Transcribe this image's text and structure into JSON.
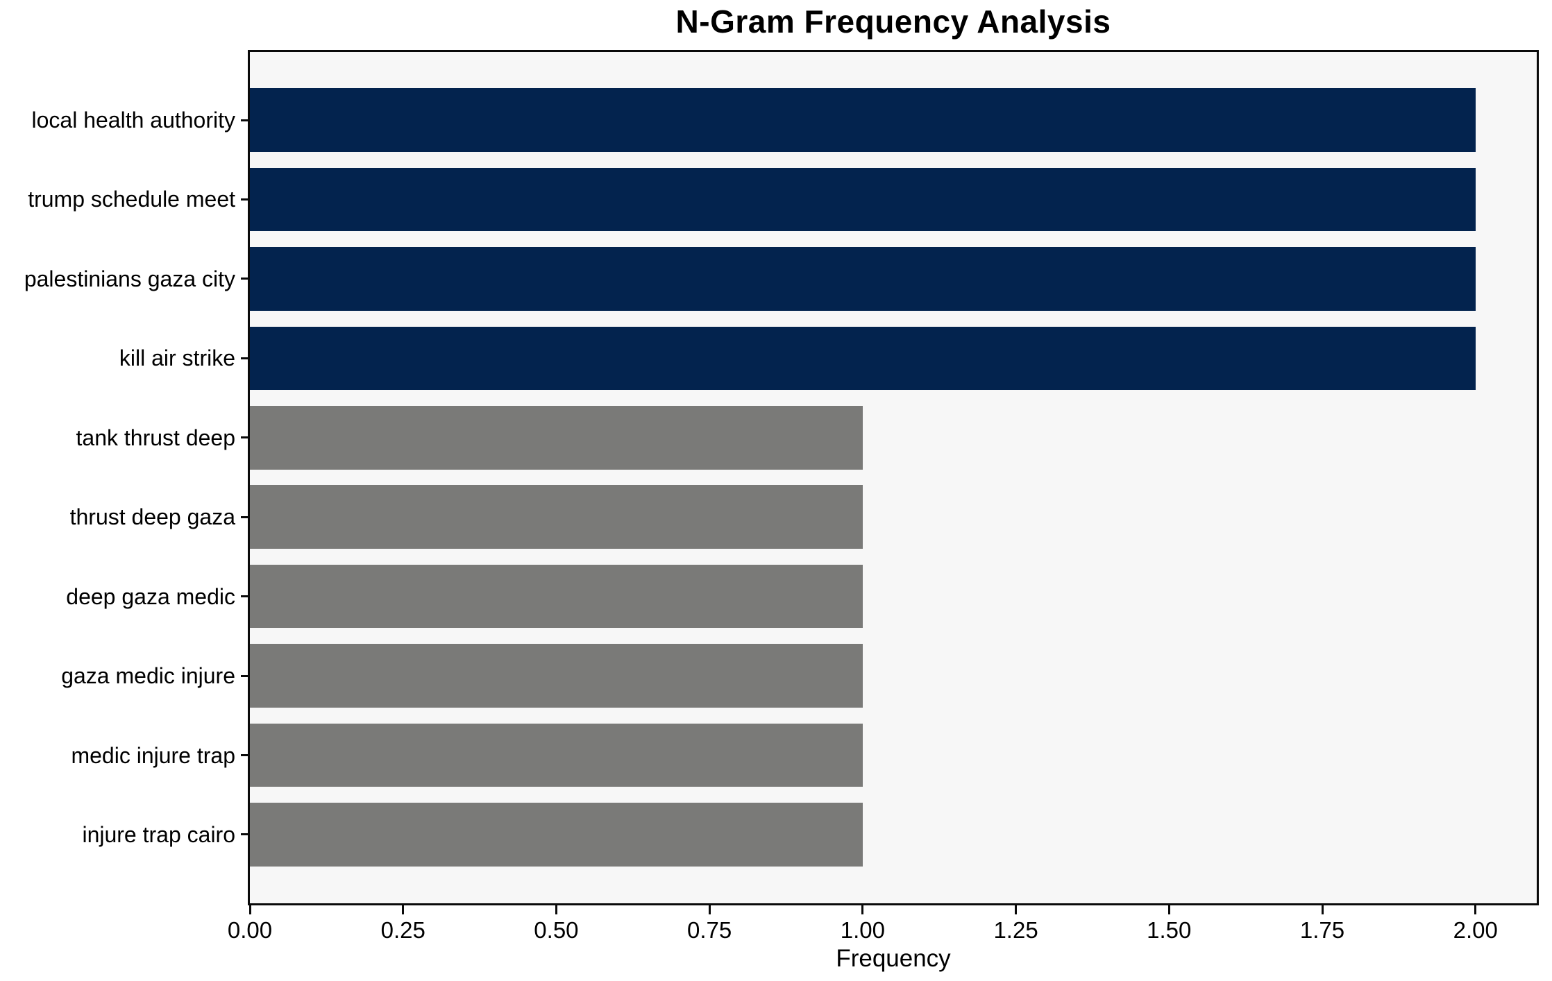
{
  "chart_data": {
    "type": "bar",
    "orientation": "horizontal",
    "title": "N-Gram Frequency Analysis",
    "xlabel": "Frequency",
    "ylabel": "",
    "categories": [
      "local health authority",
      "trump schedule meet",
      "palestinians gaza city",
      "kill air strike",
      "tank thrust deep",
      "thrust deep gaza",
      "deep gaza medic",
      "gaza medic injure",
      "medic injure trap",
      "injure trap cairo"
    ],
    "values": [
      2,
      2,
      2,
      2,
      1,
      1,
      1,
      1,
      1,
      1
    ],
    "bar_colors": [
      "#03234e",
      "#03234e",
      "#03234e",
      "#03234e",
      "#7a7a78",
      "#7a7a78",
      "#7a7a78",
      "#7a7a78",
      "#7a7a78",
      "#7a7a78"
    ],
    "xlim": [
      0,
      2.1
    ],
    "xticks": [
      0,
      0.25,
      0.5,
      0.75,
      1.0,
      1.25,
      1.5,
      1.75,
      2.0
    ],
    "xtick_labels": [
      "0.00",
      "0.25",
      "0.50",
      "0.75",
      "1.00",
      "1.25",
      "1.50",
      "1.75",
      "2.00"
    ],
    "grid": false,
    "legend": null,
    "colors": {
      "plot_background": "#f7f7f7",
      "figure_background": "#ffffff",
      "spine": "#0a0a0a",
      "text": "#000000"
    }
  }
}
